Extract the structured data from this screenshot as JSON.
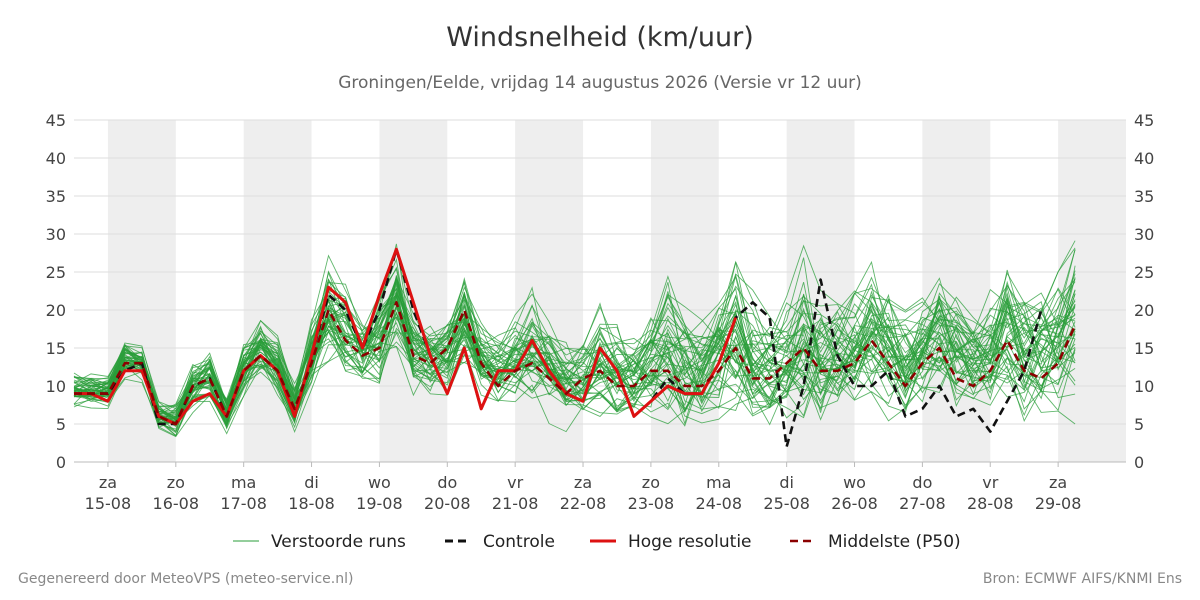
{
  "title": "Windsnelheid (km/uur)",
  "subtitle": "Groningen/Eelde, vrijdag 14 augustus 2026 (Versie vr 12 uur)",
  "footer_left": "Gegenereerd door MeteoVPS (meteo-service.nl)",
  "footer_right": "Bron: ECMWF AIFS/KNMI Ens",
  "chart_data": {
    "type": "line",
    "ylim": [
      0,
      45
    ],
    "yticks": [
      0,
      5,
      10,
      15,
      20,
      25,
      30,
      35,
      40,
      45
    ],
    "x_start": "2026-08-14 12:00",
    "x_end": "2026-08-30 00:00",
    "x_step_hours": 6,
    "grid": true,
    "weekend_shading": true,
    "legend_position": "bottom",
    "days": [
      {
        "day": "za",
        "date": "15-08"
      },
      {
        "day": "zo",
        "date": "16-08"
      },
      {
        "day": "ma",
        "date": "17-08"
      },
      {
        "day": "di",
        "date": "18-08"
      },
      {
        "day": "wo",
        "date": "19-08"
      },
      {
        "day": "do",
        "date": "20-08"
      },
      {
        "day": "vr",
        "date": "21-08"
      },
      {
        "day": "za",
        "date": "22-08"
      },
      {
        "day": "zo",
        "date": "23-08"
      },
      {
        "day": "ma",
        "date": "24-08"
      },
      {
        "day": "di",
        "date": "25-08"
      },
      {
        "day": "wo",
        "date": "26-08"
      },
      {
        "day": "do",
        "date": "27-08"
      },
      {
        "day": "vr",
        "date": "28-08"
      },
      {
        "day": "za",
        "date": "29-08"
      }
    ],
    "shaded_days": [
      "15-08",
      "17-08",
      "19-08",
      "21-08",
      "23-08",
      "25-08",
      "27-08",
      "29-08"
    ],
    "series": [
      {
        "name": "Controle",
        "color": "#111111",
        "style": "dashed",
        "values": [
          9,
          9,
          9,
          12,
          13,
          5,
          5,
          10,
          11,
          6,
          12,
          14,
          12,
          6,
          14,
          22,
          20,
          15,
          20,
          28,
          20,
          14,
          9,
          15,
          7,
          12,
          12,
          16,
          12,
          9,
          8,
          15,
          12,
          6,
          8,
          11,
          9,
          9,
          13,
          19,
          21,
          19,
          2,
          10,
          24,
          14,
          10,
          10,
          12,
          6,
          7,
          10,
          6,
          7,
          4,
          8,
          12,
          20
        ]
      },
      {
        "name": "Hoge resolutie",
        "color": "#dd1111",
        "style": "solid",
        "values": [
          9,
          9,
          8,
          12,
          12,
          6,
          5,
          8,
          9,
          6,
          12,
          14,
          12,
          6,
          14,
          23,
          21,
          15,
          22,
          28,
          21,
          14,
          9,
          15,
          7,
          12,
          12,
          16,
          12,
          9,
          8,
          15,
          12,
          6,
          8,
          10,
          9,
          9,
          13,
          19
        ]
      },
      {
        "name": "Middelste (P50)",
        "color": "#8b0000",
        "style": "dashed",
        "values": [
          9,
          9,
          9,
          13,
          13,
          6,
          5,
          10,
          11,
          6,
          12,
          14,
          12,
          7,
          13,
          20,
          16,
          14,
          15,
          21,
          14,
          13,
          15,
          20,
          13,
          10,
          12,
          13,
          11,
          9,
          11,
          12,
          10,
          10,
          12,
          12,
          10,
          10,
          12,
          15,
          11,
          11,
          13,
          15,
          12,
          12,
          13,
          16,
          13,
          10,
          13,
          15,
          11,
          10,
          12,
          16,
          12,
          11,
          13,
          18
        ]
      }
    ],
    "ensemble": {
      "name": "Verstoorde runs",
      "color": "#2a9d3a",
      "members": 50,
      "p10": [
        7,
        7,
        7,
        10,
        10,
        3,
        2,
        6,
        7,
        3,
        8,
        10,
        8,
        3,
        8,
        12,
        9,
        8,
        8,
        12,
        8,
        8,
        8,
        10,
        7,
        6,
        6,
        6,
        5,
        4,
        4,
        5,
        4,
        4,
        4,
        4,
        3,
        3,
        4,
        4,
        3,
        3,
        4,
        4,
        3,
        4,
        4,
        5,
        4,
        4,
        5,
        5,
        4,
        4,
        4,
        5,
        4,
        4,
        4,
        5
      ],
      "p90": [
        12,
        12,
        12,
        17,
        16,
        9,
        9,
        14,
        16,
        10,
        17,
        20,
        17,
        11,
        20,
        28,
        25,
        21,
        24,
        30,
        22,
        20,
        22,
        28,
        20,
        18,
        20,
        24,
        20,
        17,
        18,
        22,
        19,
        18,
        22,
        26,
        22,
        20,
        24,
        30,
        24,
        22,
        24,
        30,
        26,
        24,
        25,
        28,
        26,
        22,
        24,
        28,
        25,
        22,
        24,
        30,
        26,
        24,
        26,
        32
      ]
    },
    "legend": [
      "Verstoorde runs",
      "Controle",
      "Hoge resolutie",
      "Middelste (P50)"
    ]
  }
}
